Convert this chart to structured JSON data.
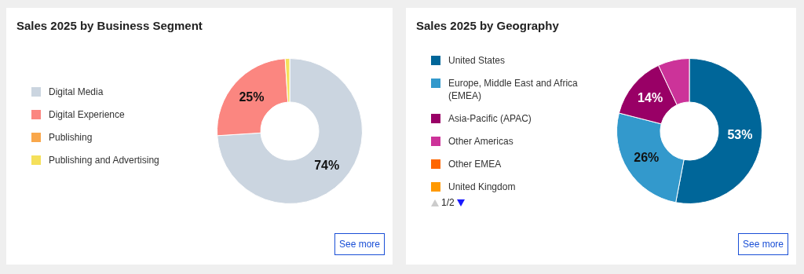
{
  "chart_data": [
    {
      "type": "donut",
      "title": "Sales 2025 by Business Segment",
      "categories": [
        "Digital Media",
        "Digital Experience",
        "Publishing",
        "Publishing and Advertising"
      ],
      "values": [
        74,
        25,
        0,
        1
      ],
      "colors": [
        "#cbd5e0",
        "#fb8680",
        "#f9a74b",
        "#f5e05a"
      ],
      "value_labels": [
        "74%",
        "25%",
        null,
        null
      ],
      "legend": "left",
      "annotations": [
        "See more"
      ]
    },
    {
      "type": "donut",
      "title": "Sales 2025 by Geography",
      "categories": [
        "United States",
        "Europe, Middle East and Africa (EMEA)",
        "Asia-Pacific (APAC)",
        "Other Americas",
        "Other EMEA",
        "United Kingdom"
      ],
      "values": [
        53,
        26,
        14,
        7,
        0,
        0
      ],
      "colors": [
        "#006699",
        "#3399cc",
        "#990066",
        "#cc3399",
        "#ff6600",
        "#ff9900"
      ],
      "value_labels": [
        "53%",
        "26%",
        "14%",
        null,
        null,
        null
      ],
      "legend": "left",
      "annotations": [
        "1/2",
        "See more"
      ]
    }
  ]
}
